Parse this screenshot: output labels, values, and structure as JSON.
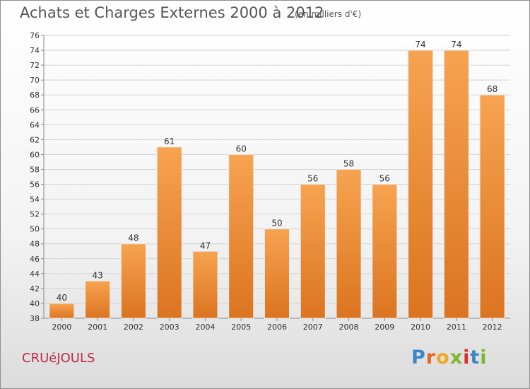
{
  "header": {
    "title": "Achats et Charges Externes 2000 à 2012",
    "subtitle": "(en milliers d'€)"
  },
  "footer": {
    "commune": "CRUéJOULS",
    "logo": {
      "letters": [
        "P",
        "r",
        "o",
        "x",
        "i",
        "t",
        "i"
      ]
    }
  },
  "colors": {
    "bar_light": "#f7a350",
    "bar_dark": "#db7420",
    "title": "#555555",
    "commune": "#c0294b",
    "logo_letters": [
      "#3a87c8",
      "#e8641b",
      "#f0a81e",
      "#7cb82f",
      "#d9302c",
      "#3a87c8",
      "#7cb82f"
    ]
  },
  "chart_data": {
    "type": "bar",
    "categories": [
      "2000",
      "2001",
      "2002",
      "2003",
      "2004",
      "2005",
      "2006",
      "2007",
      "2008",
      "2009",
      "2010",
      "2011",
      "2012"
    ],
    "values": [
      40,
      43,
      48,
      61,
      47,
      60,
      50,
      56,
      58,
      56,
      74,
      74,
      68
    ],
    "title": "Achats et Charges Externes 2000 à 2012",
    "subtitle": "(en milliers d'€)",
    "xlabel": "",
    "ylabel": "",
    "ylim": [
      38,
      76
    ],
    "ytick_step": 2,
    "grid": true,
    "data_labels": true
  }
}
